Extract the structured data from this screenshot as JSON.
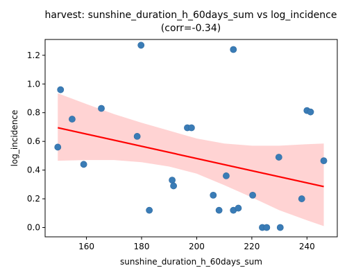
{
  "chart_data": {
    "type": "scatter",
    "title_line1": "harvest: sunshine_duration_h_60days_sum vs log_incidence",
    "title_line2": "(corr=-0.34)",
    "xlabel": "sunshine_duration_h_60days_sum",
    "ylabel": "log_incidence",
    "xlim": [
      145,
      251
    ],
    "ylim": [
      -0.065,
      1.31
    ],
    "xticks": [
      160,
      180,
      200,
      220,
      240
    ],
    "xtick_labels": [
      "160",
      "180",
      "200",
      "220",
      "240"
    ],
    "yticks": [
      0.0,
      0.2,
      0.4,
      0.6,
      0.8,
      1.0,
      1.2
    ],
    "ytick_labels": [
      "0.0",
      "0.2",
      "0.4",
      "0.6",
      "0.8",
      "1.0",
      "1.2"
    ],
    "grid": false,
    "points": [
      {
        "x": 149.6,
        "y": 0.56
      },
      {
        "x": 150.6,
        "y": 0.96
      },
      {
        "x": 154.8,
        "y": 0.755
      },
      {
        "x": 159.0,
        "y": 0.44
      },
      {
        "x": 165.4,
        "y": 0.83
      },
      {
        "x": 178.4,
        "y": 0.635
      },
      {
        "x": 179.8,
        "y": 1.27
      },
      {
        "x": 182.8,
        "y": 0.12
      },
      {
        "x": 191.1,
        "y": 0.33
      },
      {
        "x": 191.6,
        "y": 0.29
      },
      {
        "x": 196.6,
        "y": 0.695
      },
      {
        "x": 198.1,
        "y": 0.695
      },
      {
        "x": 206.0,
        "y": 0.225
      },
      {
        "x": 208.1,
        "y": 0.12
      },
      {
        "x": 210.7,
        "y": 0.36
      },
      {
        "x": 213.3,
        "y": 1.24
      },
      {
        "x": 213.3,
        "y": 0.12
      },
      {
        "x": 215.1,
        "y": 0.135
      },
      {
        "x": 220.3,
        "y": 0.225
      },
      {
        "x": 223.8,
        "y": 0.0
      },
      {
        "x": 225.4,
        "y": 0.0
      },
      {
        "x": 229.8,
        "y": 0.49
      },
      {
        "x": 230.3,
        "y": 0.0
      },
      {
        "x": 238.1,
        "y": 0.2
      },
      {
        "x": 240.0,
        "y": 0.815
      },
      {
        "x": 241.3,
        "y": 0.805
      },
      {
        "x": 246.1,
        "y": 0.465
      }
    ],
    "regression_line": {
      "x": [
        149.6,
        246.1
      ],
      "y": [
        0.695,
        0.285
      ]
    },
    "confidence_band": {
      "x": [
        149.6,
        160,
        170,
        180,
        190,
        200,
        210,
        220,
        230,
        240,
        246.1
      ],
      "upper": [
        0.935,
        0.86,
        0.79,
        0.73,
        0.675,
        0.62,
        0.585,
        0.57,
        0.57,
        0.58,
        0.585
      ],
      "lower": [
        0.465,
        0.47,
        0.47,
        0.455,
        0.425,
        0.375,
        0.295,
        0.21,
        0.12,
        0.05,
        0.01
      ]
    },
    "colors": {
      "point": "#3a7cb6",
      "line": "#ff0000",
      "band": "#ffb5b5",
      "axis": "#000000"
    }
  }
}
